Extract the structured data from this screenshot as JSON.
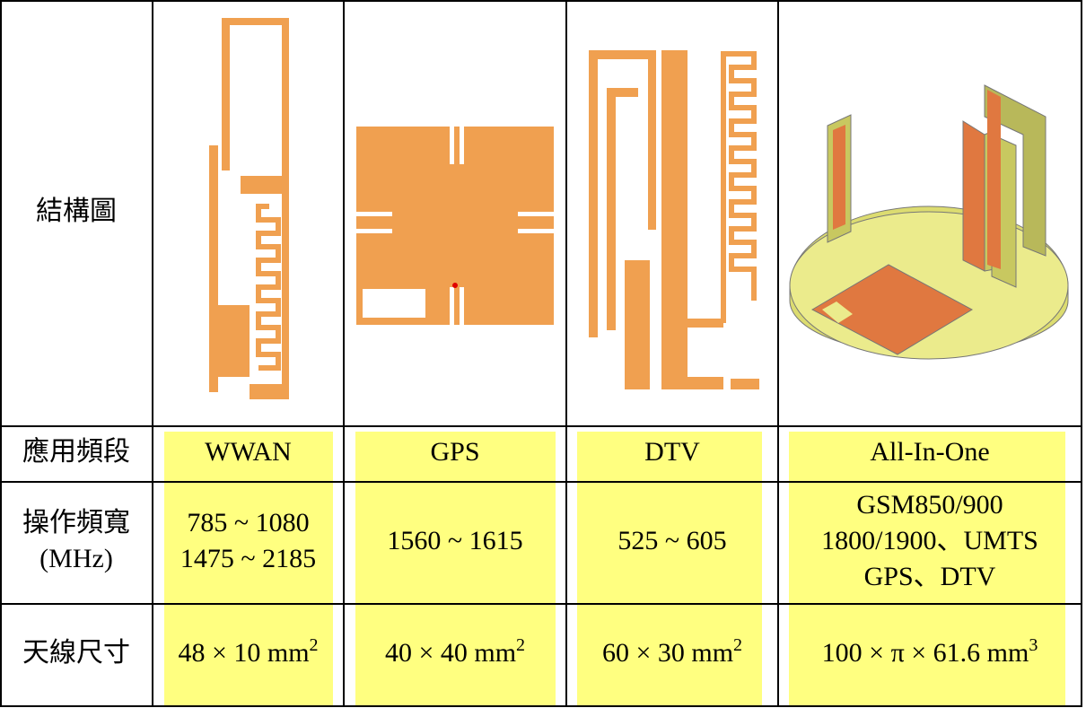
{
  "table": {
    "row_headers": [
      [
        "結構圖"
      ],
      [
        "應用頻段"
      ],
      [
        "操作頻寬",
        "(MHz)"
      ],
      [
        "天線尺寸"
      ]
    ],
    "bands": [
      "WWAN",
      "GPS",
      "DTV",
      "All-In-One"
    ],
    "bandwidths": [
      [
        "785 ~ 1080",
        "1475 ~ 2185"
      ],
      [
        "1560 ~ 1615"
      ],
      [
        "525 ~ 605"
      ],
      [
        "GSM850/900",
        "1800/1900、UMTS",
        "GPS、DTV"
      ]
    ],
    "sizes": [
      {
        "text": "48 × 10 mm",
        "sup": "2"
      },
      {
        "text": "40 × 40 mm",
        "sup": "2"
      },
      {
        "text": "60 × 30 mm",
        "sup": "2"
      },
      {
        "text": "100 × π × 61.6 mm",
        "sup": "3"
      }
    ]
  }
}
